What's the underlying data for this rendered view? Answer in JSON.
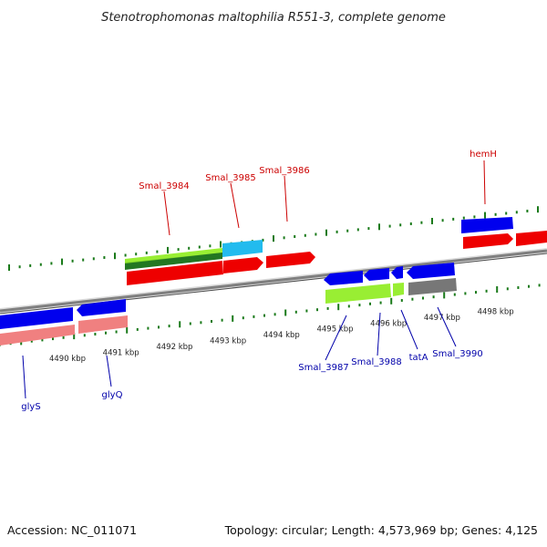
{
  "title": "Stenotrophomonas maltophilia R551-3, complete genome",
  "footer": {
    "accession": "Accession: NC_011071",
    "topology": "Topology: circular; Length: 4,573,969 bp; Genes: 4,125"
  },
  "colors": {
    "forward_label": "#cc0000",
    "reverse_label": "#0000aa",
    "tick": "#1a7a1a",
    "backbone": "#888888",
    "blue": "#0000ee",
    "red": "#ee0000",
    "pink": "#f08080",
    "lime": "#99ee33",
    "darkgreen": "#227722",
    "cyan": "#22bbee",
    "gray": "#777777"
  },
  "ticks": [
    {
      "label": "4490 kbp"
    },
    {
      "label": "4491 kbp"
    },
    {
      "label": "4492 kbp"
    },
    {
      "label": "4493 kbp"
    },
    {
      "label": "4494 kbp"
    },
    {
      "label": "4495 kbp"
    },
    {
      "label": "4496 kbp"
    },
    {
      "label": "4497 kbp"
    },
    {
      "label": "4498 kbp"
    }
  ],
  "genes": [
    {
      "name": "Smal_3984",
      "strand": "forward"
    },
    {
      "name": "Smal_3985",
      "strand": "forward"
    },
    {
      "name": "Smal_3986",
      "strand": "forward"
    },
    {
      "name": "hemH",
      "strand": "forward"
    },
    {
      "name": "glyS",
      "strand": "reverse"
    },
    {
      "name": "glyQ",
      "strand": "reverse"
    },
    {
      "name": "Smal_3987",
      "strand": "reverse"
    },
    {
      "name": "Smal_3988",
      "strand": "reverse"
    },
    {
      "name": "tatA",
      "strand": "reverse"
    },
    {
      "name": "Smal_3990",
      "strand": "reverse"
    }
  ]
}
